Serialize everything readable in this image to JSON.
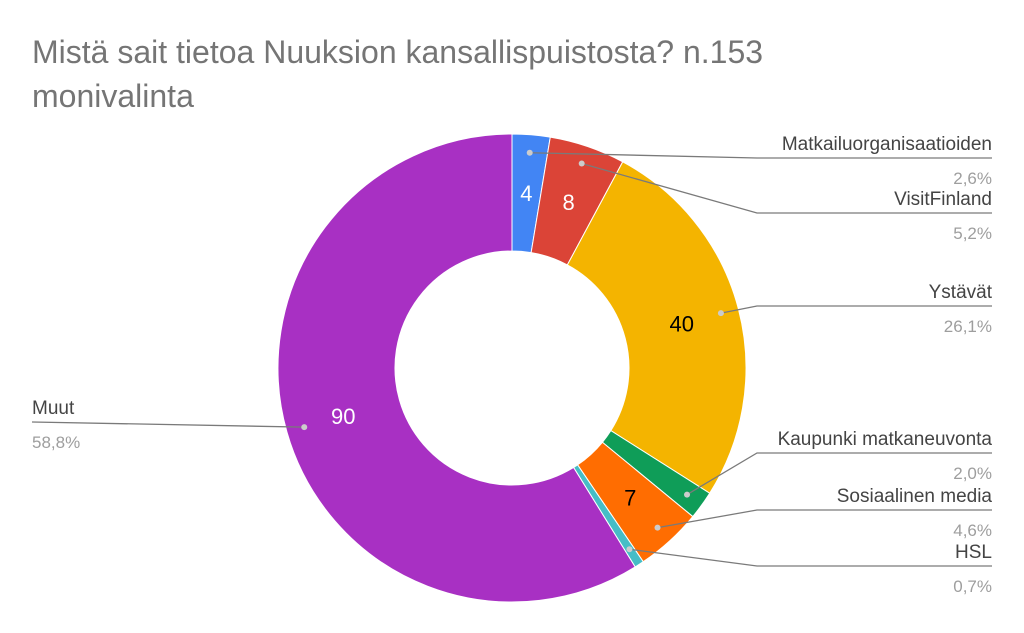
{
  "chart_data": {
    "type": "pie",
    "title": "Mistä sait tietoa Nuuksion kansallispuistosta? n.153",
    "subtitle": "monivalinta",
    "donut": true,
    "total": 153,
    "slices": [
      {
        "label": "Matkailuorganisaatioiden",
        "value": 4,
        "percent_label": "2,6%",
        "color": "#4285f4",
        "value_label": "4",
        "value_text_color": "#ffffff"
      },
      {
        "label": "VisitFinland",
        "value": 8,
        "percent_label": "5,2%",
        "color": "#db4437",
        "value_label": "8",
        "value_text_color": "#ffffff"
      },
      {
        "label": "Ystävät",
        "value": 40,
        "percent_label": "26,1%",
        "color": "#f4b400",
        "value_label": "40",
        "value_text_color": "#000000"
      },
      {
        "label": "Kaupunki matkaneuvonta",
        "value": 3,
        "percent_label": "2,0%",
        "color": "#0f9d58",
        "value_label": "",
        "value_text_color": "#ffffff"
      },
      {
        "label": "Sosiaalinen media",
        "value": 7,
        "percent_label": "4,6%",
        "color": "#ff6d01",
        "value_label": "7",
        "value_text_color": "#000000"
      },
      {
        "label": "HSL",
        "value": 1,
        "percent_label": "0,7%",
        "color": "#46bdc6",
        "value_label": "",
        "value_text_color": "#ffffff"
      },
      {
        "label": "Muut",
        "value": 90,
        "percent_label": "58,8%",
        "color": "#a830c3",
        "value_label": "90",
        "value_text_color": "#ffffff"
      }
    ]
  }
}
